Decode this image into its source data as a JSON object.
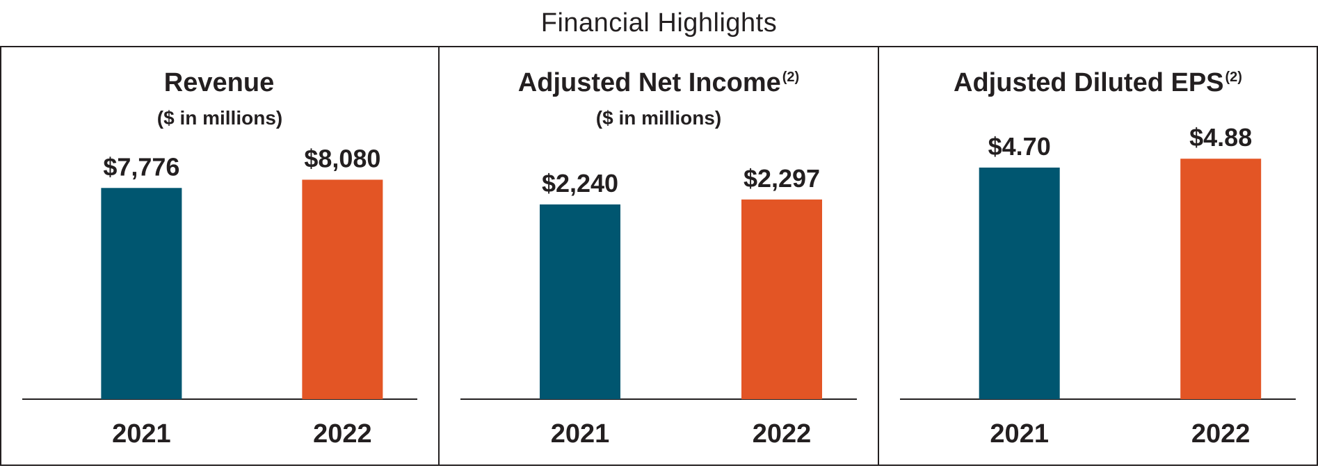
{
  "title": "Financial Highlights",
  "colors": {
    "year_2021": "#005670",
    "year_2022": "#e35525",
    "text": "#231f20",
    "border": "#231f20"
  },
  "chart_data": [
    {
      "type": "bar",
      "title": "Revenue",
      "title_note": "",
      "subtitle": "($ in millions)",
      "categories": [
        "2021",
        "2022"
      ],
      "values": [
        7776,
        8080
      ],
      "value_labels": [
        "$7,776",
        "$8,080"
      ],
      "ylim": [
        0,
        10395
      ],
      "xlabel": "",
      "ylabel": "",
      "grid": false,
      "legend": "none"
    },
    {
      "type": "bar",
      "title": "Adjusted Net Income",
      "title_note": "(2)",
      "subtitle": "($ in millions)",
      "categories": [
        "2021",
        "2022"
      ],
      "values": [
        2240,
        2297
      ],
      "value_labels": [
        "$2,240",
        "$2,297"
      ],
      "ylim": [
        0,
        3248
      ],
      "xlabel": "",
      "ylabel": "",
      "grid": false,
      "legend": "none"
    },
    {
      "type": "bar",
      "title": "Adjusted Diluted EPS",
      "title_note": "(2)",
      "subtitle": "",
      "categories": [
        "2021",
        "2022"
      ],
      "values": [
        4.7,
        4.88
      ],
      "value_labels": [
        "$4.70",
        "$4.88"
      ],
      "ylim": [
        0,
        5.73
      ],
      "xlabel": "",
      "ylabel": "",
      "grid": false,
      "legend": "none"
    }
  ]
}
